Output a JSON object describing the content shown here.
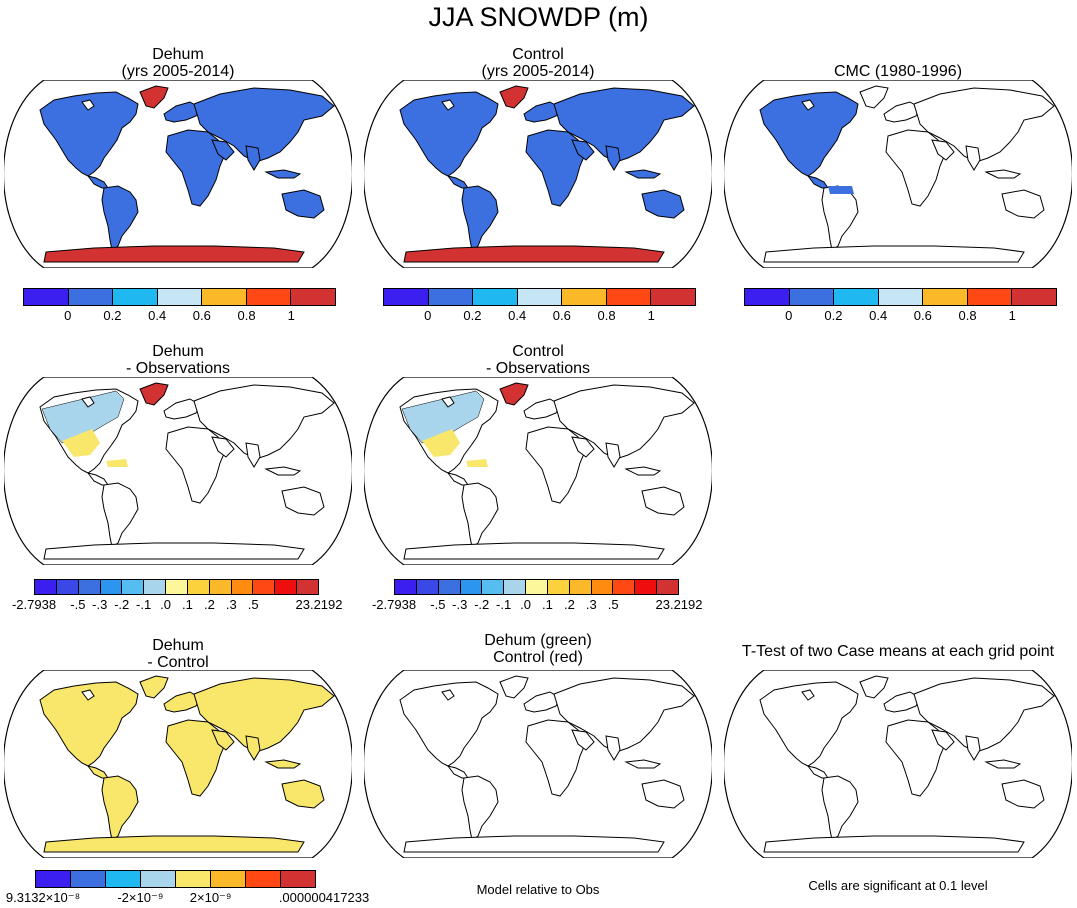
{
  "title": "JJA SNOWDP (m)",
  "colors": {
    "snow": "#3c6fe0",
    "ice": "#d33232",
    "diff_pos": "#f9e76b",
    "diff_neg": "#a8d4ec",
    "land_empty": "#ffffff",
    "outline": "#000000"
  },
  "panels": [
    {
      "title": [
        "Dehum",
        "(yrs 2005-2014)"
      ],
      "fill": "all_land",
      "ice_regions": [
        "greenland",
        "antarctica"
      ]
    },
    {
      "title": [
        "Control",
        "(yrs 2005-2014)"
      ],
      "fill": "all_land",
      "ice_regions": [
        "greenland",
        "antarctica"
      ]
    },
    {
      "title": [
        "CMC (1980-1996)"
      ],
      "fill": "north_america",
      "ice_regions": []
    },
    {
      "title": [
        "Dehum",
        "- Observations"
      ],
      "fill": "north_america_diff",
      "ice_regions": [
        "greenland"
      ]
    },
    {
      "title": [
        "Control",
        "- Observations"
      ],
      "fill": "north_america_diff",
      "ice_regions": [
        "greenland"
      ]
    },
    {
      "title": [
        "Dehum",
        "- Control"
      ],
      "fill": "all_land_diff",
      "ice_regions": []
    },
    {
      "title": [
        "Dehum (green)",
        "Control (red)"
      ],
      "fill": "none",
      "ice_regions": []
    },
    {
      "title": [
        "T-Test of two Case means at each grid point"
      ],
      "fill": "none",
      "ice_regions": []
    }
  ],
  "colorbars": {
    "row1": {
      "colors": [
        "#3a1ff0",
        "#3c6fe0",
        "#1fb8f0",
        "#c6e6f5",
        "#fbb829",
        "#ff4813",
        "#d33232"
      ],
      "labels": [
        "0",
        "0.2",
        "0.4",
        "0.6",
        "0.8",
        "1"
      ]
    },
    "row2": {
      "colors": [
        "#3a1ff0",
        "#3b48e8",
        "#3c6fe0",
        "#2b95f0",
        "#55bdf0",
        "#a8d4ec",
        "#fdf79c",
        "#fbd23c",
        "#fbb829",
        "#ff8c10",
        "#ff4813",
        "#ee0e0e",
        "#d33232"
      ],
      "labels": [
        "-2.7938",
        "-.5",
        "-.3",
        "-.2",
        "-.1",
        ".0",
        ".1",
        ".2",
        ".3",
        ".5",
        "23.2192"
      ]
    },
    "row3": {
      "colors": [
        "#3a1ff0",
        "#3c6fe0",
        "#1fb8f0",
        "#a8d4ec",
        "#f9e76b",
        "#fbb829",
        "#ff4813",
        "#d33232"
      ],
      "labels": [
        "9.3132×10⁻⁸",
        "-2×10⁻⁹",
        "2×10⁻⁹",
        ".000000417233"
      ]
    }
  },
  "notes": {
    "model_relative": "Model relative to Obs",
    "significance": "Cells are significant at 0.1 level"
  }
}
